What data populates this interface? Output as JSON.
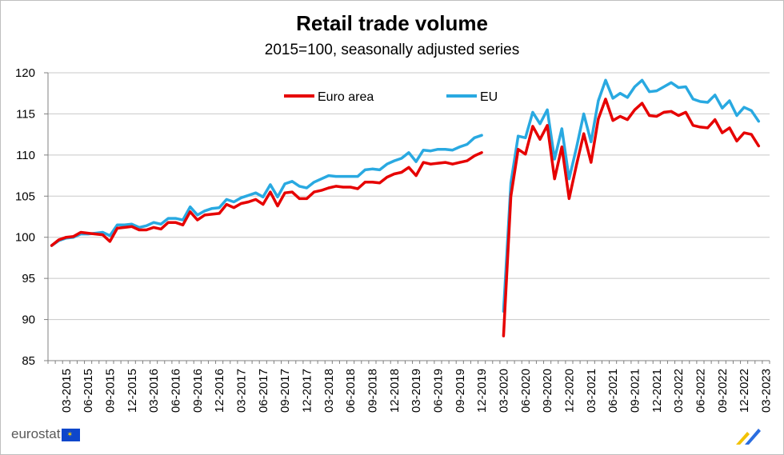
{
  "logo_text": "eurostat",
  "chart_data": {
    "type": "line",
    "title": "Retail trade volume",
    "subtitle": "2015=100, seasonally adjusted series",
    "xlabel": "",
    "ylabel": "",
    "ylim": [
      85,
      120
    ],
    "yticks": [
      85,
      90,
      95,
      100,
      105,
      110,
      115,
      120
    ],
    "grid": true,
    "legend_placement": "top-left",
    "x": [
      "01-2015",
      "02-2015",
      "03-2015",
      "04-2015",
      "05-2015",
      "06-2015",
      "07-2015",
      "08-2015",
      "09-2015",
      "10-2015",
      "11-2015",
      "12-2015",
      "01-2016",
      "02-2016",
      "03-2016",
      "04-2016",
      "05-2016",
      "06-2016",
      "07-2016",
      "08-2016",
      "09-2016",
      "10-2016",
      "11-2016",
      "12-2016",
      "01-2017",
      "02-2017",
      "03-2017",
      "04-2017",
      "05-2017",
      "06-2017",
      "07-2017",
      "08-2017",
      "09-2017",
      "10-2017",
      "11-2017",
      "12-2017",
      "01-2018",
      "02-2018",
      "03-2018",
      "04-2018",
      "05-2018",
      "06-2018",
      "07-2018",
      "08-2018",
      "09-2018",
      "10-2018",
      "11-2018",
      "12-2018",
      "01-2019",
      "02-2019",
      "03-2019",
      "04-2019",
      "05-2019",
      "06-2019",
      "07-2019",
      "08-2019",
      "09-2019",
      "10-2019",
      "11-2019",
      "12-2019",
      "01-2020",
      "02-2020",
      "03-2020",
      "04-2020",
      "05-2020",
      "06-2020",
      "07-2020",
      "08-2020",
      "09-2020",
      "10-2020",
      "11-2020",
      "12-2020",
      "01-2021",
      "02-2021",
      "03-2021",
      "04-2021",
      "05-2021",
      "06-2021",
      "07-2021",
      "08-2021",
      "09-2021",
      "10-2021",
      "11-2021",
      "12-2021",
      "01-2022",
      "02-2022",
      "03-2022",
      "04-2022",
      "05-2022",
      "06-2022",
      "07-2022",
      "08-2022",
      "09-2022",
      "10-2022",
      "11-2022",
      "12-2022",
      "01-2023",
      "02-2023",
      "03-2023"
    ],
    "xtick_labels": [
      "03-2015",
      "06-2015",
      "09-2015",
      "12-2015",
      "03-2016",
      "06-2016",
      "09-2016",
      "12-2016",
      "03-2017",
      "06-2017",
      "09-2017",
      "12-2017",
      "03-2018",
      "06-2018",
      "09-2018",
      "12-2018",
      "03-2019",
      "06-2019",
      "09-2019",
      "12-2019",
      "03-2020",
      "06-2020",
      "09-2020",
      "12-2020",
      "03-2021",
      "06-2021",
      "09-2021",
      "12-2021",
      "03-2022",
      "06-2022",
      "09-2022",
      "12-2022",
      "03-2023"
    ],
    "series": [
      {
        "name": "Euro area",
        "color": "#e60000",
        "values": [
          99.0,
          99.7,
          100.0,
          100.1,
          100.6,
          100.5,
          100.4,
          100.3,
          99.5,
          101.1,
          101.2,
          101.3,
          100.9,
          100.9,
          101.2,
          101.0,
          101.8,
          101.8,
          101.5,
          103.1,
          102.1,
          102.7,
          102.8,
          102.9,
          104.0,
          103.6,
          104.1,
          104.3,
          104.6,
          104.0,
          105.5,
          103.8,
          105.4,
          105.5,
          104.7,
          104.7,
          105.5,
          105.7,
          106.0,
          106.2,
          106.1,
          106.1,
          105.9,
          106.7,
          106.7,
          106.6,
          107.3,
          107.7,
          107.9,
          108.5,
          107.5,
          109.1,
          108.9,
          109.0,
          109.1,
          108.9,
          109.1,
          109.3,
          109.9,
          110.3,
          null,
          null,
          88.0,
          105.0,
          110.7,
          110.1,
          113.5,
          111.9,
          113.6,
          107.1,
          111.0,
          104.7,
          108.8,
          112.6,
          109.1,
          114.4,
          116.8,
          114.2,
          114.7,
          114.3,
          115.5,
          116.3,
          114.8,
          114.7,
          115.2,
          115.3,
          114.8,
          115.2,
          113.6,
          113.4,
          113.3,
          114.3,
          112.7,
          113.3,
          111.7,
          112.7,
          112.5,
          111.1,
          null
        ]
      },
      {
        "name": "EU",
        "color": "#29a9e1",
        "values": [
          99.0,
          99.6,
          99.9,
          100.0,
          100.4,
          100.4,
          100.5,
          100.6,
          100.2,
          101.5,
          101.5,
          101.6,
          101.2,
          101.4,
          101.8,
          101.6,
          102.3,
          102.3,
          102.1,
          103.7,
          102.7,
          103.2,
          103.5,
          103.6,
          104.6,
          104.3,
          104.8,
          105.1,
          105.4,
          104.9,
          106.4,
          104.9,
          106.5,
          106.8,
          106.2,
          106.0,
          106.7,
          107.1,
          107.5,
          107.4,
          107.4,
          107.4,
          107.4,
          108.2,
          108.3,
          108.2,
          108.9,
          109.3,
          109.6,
          110.3,
          109.2,
          110.6,
          110.5,
          110.7,
          110.7,
          110.6,
          111.0,
          111.3,
          112.1,
          112.4,
          null,
          null,
          91.0,
          106.6,
          112.3,
          112.1,
          115.2,
          113.8,
          115.5,
          109.5,
          113.2,
          107.1,
          110.9,
          115.0,
          111.6,
          116.6,
          119.1,
          116.9,
          117.5,
          117.0,
          118.3,
          119.1,
          117.7,
          117.8,
          118.3,
          118.8,
          118.2,
          118.3,
          116.8,
          116.5,
          116.4,
          117.3,
          115.7,
          116.6,
          114.8,
          115.8,
          115.4,
          114.1,
          null
        ]
      }
    ]
  }
}
